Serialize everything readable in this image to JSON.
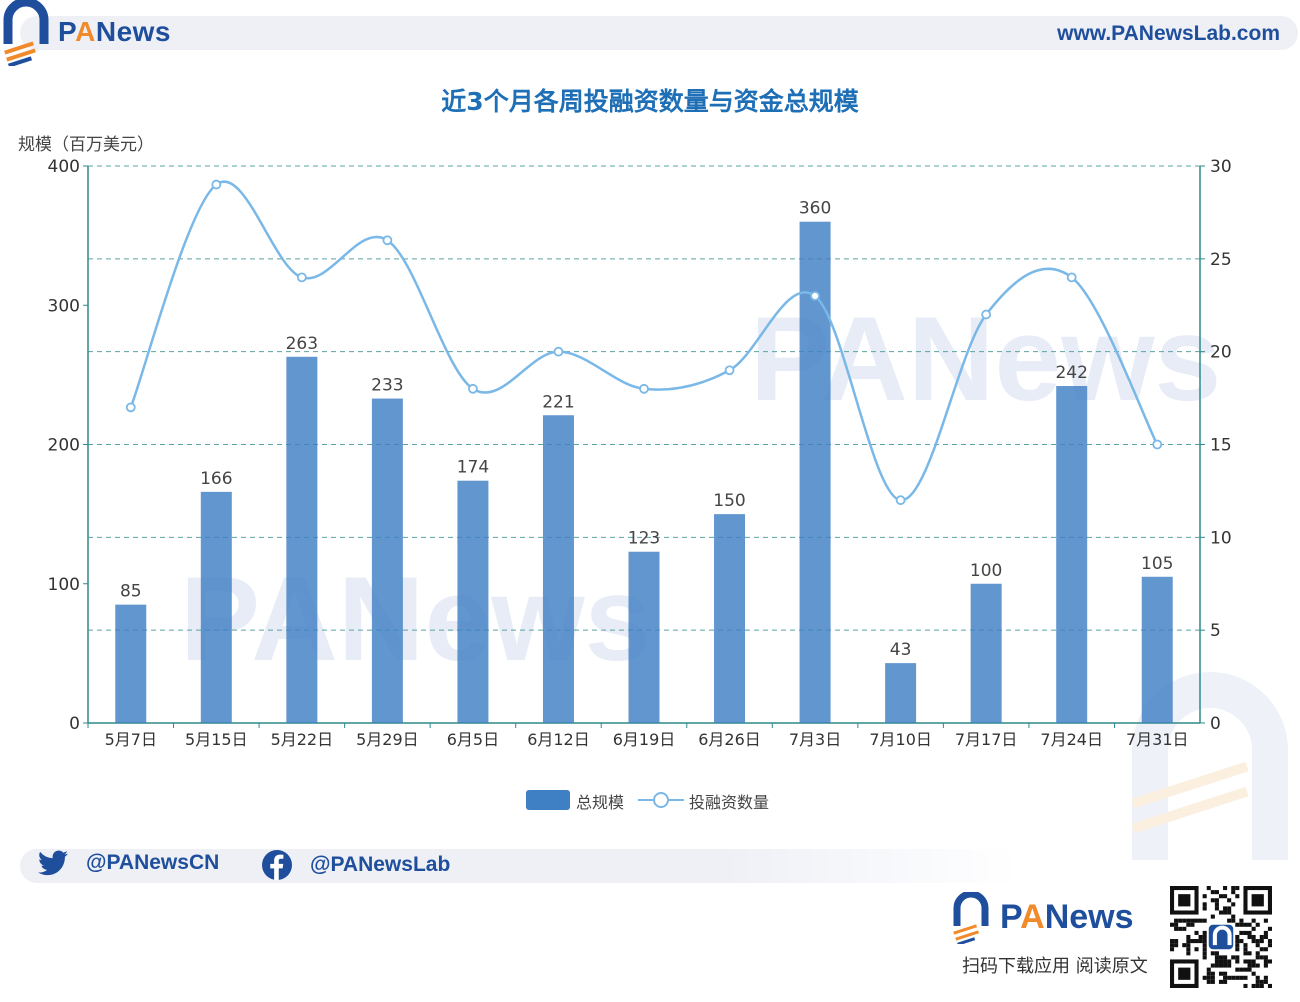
{
  "header": {
    "brand_prefix": "P",
    "brand_accent": "A",
    "brand_rest": "News",
    "site_url": "www.PANewsLab.com"
  },
  "title": "近3个月各周投融资数量与资金总规模",
  "chart_data": {
    "type": "bar",
    "title": "近3个月各周投融资数量与资金总规模",
    "categories": [
      "5月7日",
      "5月15日",
      "5月22日",
      "5月29日",
      "6月5日",
      "6月12日",
      "6月19日",
      "6月26日",
      "7月3日",
      "7月10日",
      "7月17日",
      "7月24日",
      "7月31日"
    ],
    "series": [
      {
        "name": "总规模",
        "type": "bar",
        "axis": "left",
        "values": [
          85,
          166,
          263,
          233,
          174,
          221,
          123,
          150,
          360,
          43,
          100,
          242,
          105
        ],
        "labels_shown": true
      },
      {
        "name": "投融资数量",
        "type": "line",
        "axis": "right",
        "smooth": true,
        "values": [
          17,
          29,
          24,
          26,
          18,
          20,
          18,
          19,
          23,
          12,
          22,
          24,
          15
        ],
        "labels_shown": false
      }
    ],
    "ylabel": "规模（百万美元）",
    "ylim_left": [
      0,
      400
    ],
    "yticks_left": [
      0,
      100,
      200,
      300,
      400
    ],
    "ylim_right": [
      0,
      30
    ],
    "yticks_right": [
      0,
      5,
      10,
      15,
      20,
      25,
      30
    ],
    "grid": "horizontal dashed",
    "legend_position": "bottom-center",
    "colors": {
      "bar": "#3f7fc4",
      "line": "#7ab8e8",
      "axis": "#2e8a8a",
      "grid": "#5aa3a3"
    }
  },
  "legend": {
    "bar_label": "总规模",
    "line_label": "投融资数量"
  },
  "footer": {
    "twitter": "@PANewsCN",
    "facebook": "@PANewsLab",
    "brand_prefix": "P",
    "brand_accent": "A",
    "brand_rest": "News",
    "caption": "扫码下载应用  阅读原文"
  }
}
